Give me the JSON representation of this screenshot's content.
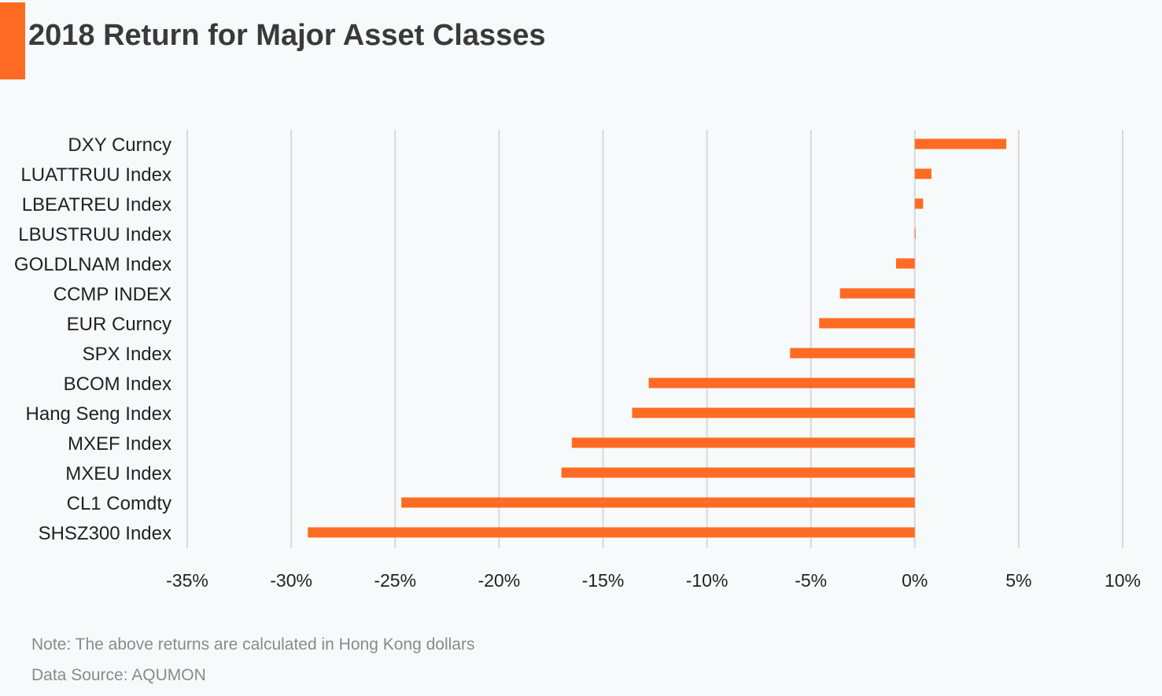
{
  "header": {
    "title": "2018 Return for Major Asset Classes"
  },
  "colors": {
    "bar": "#ff6b22",
    "grid": "#d9d9d9",
    "label": "#222222",
    "tick": "#222222"
  },
  "chart_data": {
    "type": "bar",
    "orientation": "horizontal",
    "title": "2018 Return for Major Asset Classes",
    "categories": [
      "DXY Curncy",
      "LUATTRUU Index",
      "LBEATREU Index",
      "LBUSTRUU Index",
      "GOLDLNAM Index",
      "CCMP INDEX",
      "EUR Curncy",
      "SPX Index",
      "BCOM Index",
      "Hang Seng Index",
      "MXEF Index",
      "MXEU Index",
      "CL1 Comdty",
      "SHSZ300 Index"
    ],
    "values": [
      4.4,
      0.8,
      0.4,
      0.0,
      -0.9,
      -3.6,
      -4.6,
      -6.0,
      -12.8,
      -13.6,
      -16.5,
      -17.0,
      -24.7,
      -29.2
    ],
    "unit": "%",
    "xlim": [
      -35,
      10
    ],
    "xticks": [
      -35,
      -30,
      -25,
      -20,
      -15,
      -10,
      -5,
      0,
      5,
      10
    ],
    "xtick_labels": [
      "-35%",
      "-30%",
      "-25%",
      "-20%",
      "-15%",
      "-10%",
      "-5%",
      "0%",
      "5%",
      "10%"
    ],
    "grid": "vertical",
    "legend": "none"
  },
  "footer": {
    "note": "Note: The above returns are calculated in Hong Kong dollars",
    "source": "Data Source: AQUMON"
  }
}
